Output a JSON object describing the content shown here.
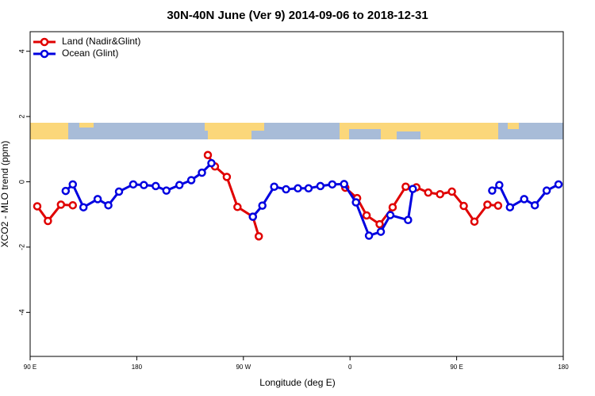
{
  "chart_data": {
    "type": "line",
    "title": "30N-40N June (Ver 9)   2014-09-06 to 2018-12-31",
    "x_label": "Longitude (deg E)",
    "y_label": "XCO2 - MLO trend (ppm)",
    "xlim": [
      90,
      540
    ],
    "ylim": [
      -5.35,
      4.6
    ],
    "xticks": [
      {
        "value": 90,
        "label": "90 E"
      },
      {
        "value": 180,
        "label": "180"
      },
      {
        "value": 270,
        "label": "90 W"
      },
      {
        "value": 360,
        "label": "0"
      },
      {
        "value": 450,
        "label": "90 E"
      },
      {
        "value": 540,
        "label": "180"
      }
    ],
    "yticks": [
      4,
      2,
      0,
      -2,
      -4
    ],
    "legend": "top-left",
    "series": [
      {
        "name": "Land (Nadir&Glint)",
        "color": "#e00000",
        "x": [
          96,
          105,
          116,
          126,
          null,
          240,
          246,
          256,
          265,
          278,
          283,
          null,
          356,
          366,
          374,
          385,
          396,
          407,
          416,
          426,
          436,
          446,
          456,
          465,
          476,
          485
        ],
        "values": [
          -0.75,
          -1.2,
          -0.7,
          -0.72,
          null,
          0.82,
          0.47,
          0.15,
          -0.77,
          -1.07,
          -1.67,
          null,
          -0.18,
          -0.5,
          -1.03,
          -1.3,
          -0.78,
          -0.15,
          -0.17,
          -0.33,
          -0.38,
          -0.3,
          -0.74,
          -1.22,
          -0.7,
          -0.73
        ]
      },
      {
        "name": "Ocean (Glint)",
        "color": "#0000e0",
        "x": [
          120,
          126,
          135,
          147,
          156,
          165,
          177,
          186,
          196,
          205,
          216,
          226,
          235,
          243,
          null,
          278,
          286,
          296,
          306,
          316,
          325,
          335,
          345,
          355,
          365,
          376,
          386,
          394,
          409,
          413,
          null,
          480,
          486,
          495,
          507,
          516,
          526,
          536
        ],
        "values": [
          -0.28,
          -0.08,
          -0.78,
          -0.53,
          -0.72,
          -0.3,
          -0.08,
          -0.1,
          -0.13,
          -0.27,
          -0.1,
          0.05,
          0.28,
          0.57,
          null,
          -1.07,
          -0.73,
          -0.15,
          -0.23,
          -0.2,
          -0.2,
          -0.13,
          -0.08,
          -0.07,
          -0.63,
          -1.65,
          -1.53,
          -1.02,
          -1.17,
          -0.22,
          null,
          -0.27,
          -0.1,
          -0.78,
          -0.53,
          -0.72,
          -0.27,
          -0.08
        ]
      }
    ]
  }
}
